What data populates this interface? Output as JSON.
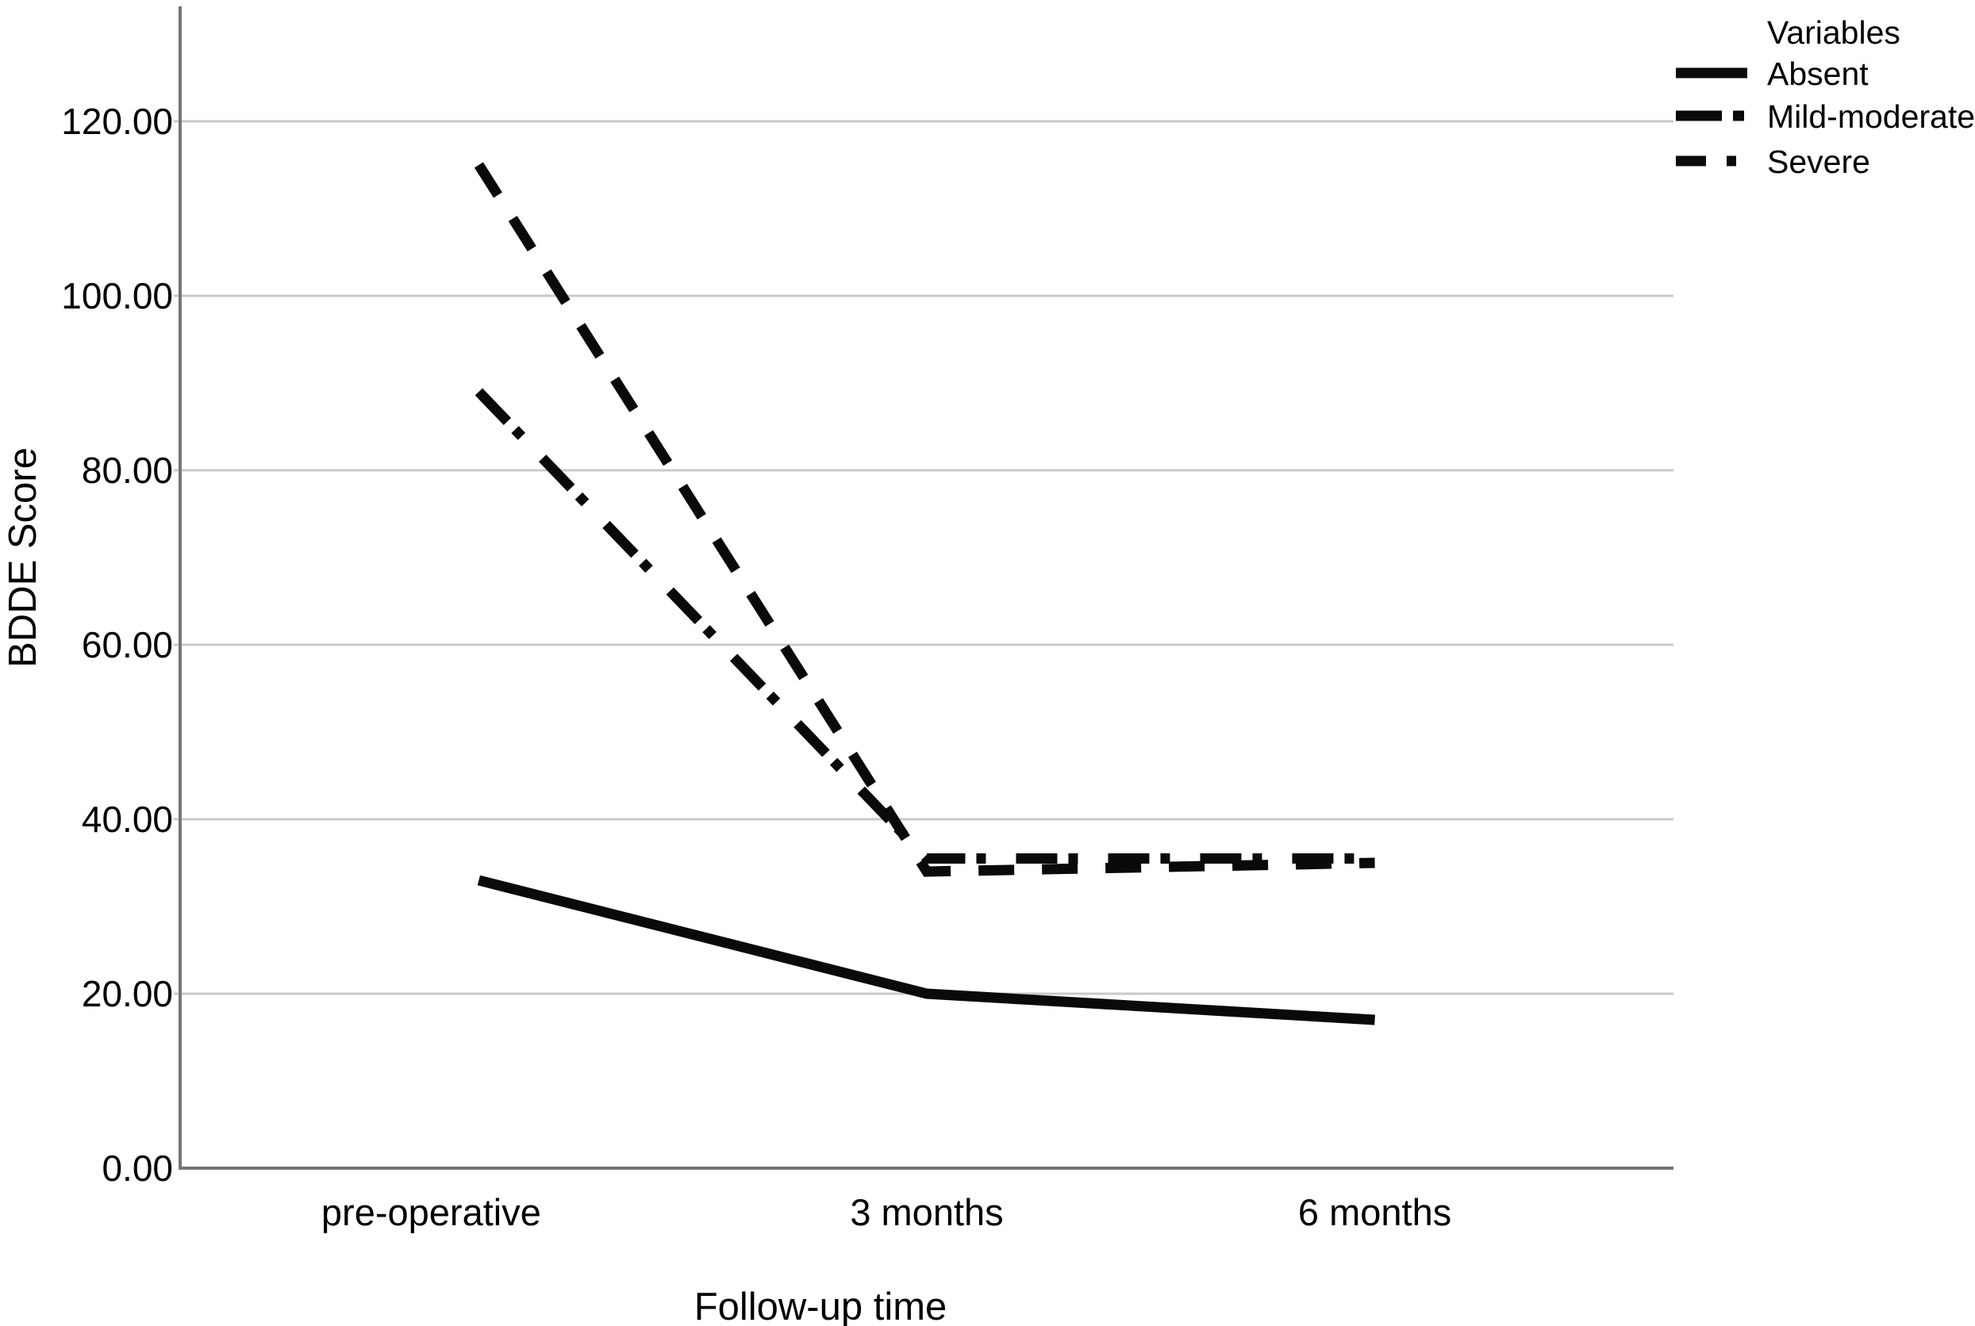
{
  "chart_data": {
    "type": "line",
    "title": "",
    "xlabel": "Follow-up time",
    "ylabel": "BDDE Score",
    "categories": [
      "pre-operative",
      "3 months",
      "6 months"
    ],
    "series": [
      {
        "name": "Absent",
        "style": "solid",
        "values": [
          33,
          20,
          17
        ]
      },
      {
        "name": "Mild-moderate",
        "style": "dash-dot",
        "values": [
          89,
          35.5,
          35.5
        ]
      },
      {
        "name": "Severe",
        "style": "dashed",
        "values": [
          115,
          34,
          35
        ]
      }
    ],
    "ylim": [
      0,
      120
    ],
    "ytick_step": 20,
    "ytick_labels": [
      "0.00",
      "20.00",
      "40.00",
      "60.00",
      "80.00",
      "100.00",
      "120.00"
    ],
    "grid": "horizontal-gridlines",
    "legend_title": "Variables",
    "legend_position": "top-right",
    "colors": {
      "background": "#ffffff",
      "line": "#0a0a0a",
      "grid": "#c9c9c9",
      "axis": "#757575",
      "text": "#000000"
    }
  }
}
